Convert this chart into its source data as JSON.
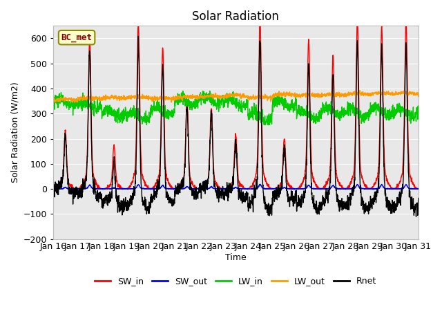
{
  "title": "Solar Radiation",
  "xlabel": "Time",
  "ylabel": "Solar Radiation (W/m2)",
  "ylim": [
    -200,
    650
  ],
  "xlim": [
    0,
    360
  ],
  "yticks": [
    -200,
    -100,
    0,
    100,
    200,
    300,
    400,
    500,
    600
  ],
  "xtick_labels": [
    "Jan 16",
    "Jan 17",
    "Jan 18",
    "Jan 19",
    "Jan 20",
    "Jan 21",
    "Jan 22",
    "Jan 23",
    "Jan 24",
    "Jan 25",
    "Jan 26",
    "Jan 27",
    "Jan 28",
    "Jan 29",
    "Jan 30",
    "Jan 31"
  ],
  "xtick_positions": [
    0,
    24,
    48,
    72,
    96,
    120,
    144,
    168,
    192,
    216,
    240,
    264,
    288,
    312,
    336,
    360
  ],
  "colors": {
    "SW_in": "#ff0000",
    "SW_out": "#0000ff",
    "LW_in": "#00cc00",
    "LW_out": "#ff9900",
    "Rnet": "#000000"
  },
  "annotation_text": "BC_met",
  "annotation_color": "#8B0000",
  "annotation_bg": "#ffffcc",
  "annotation_border": "#8B8B00",
  "bg_color": "#e8e8e8",
  "figure_bg": "#ffffff",
  "grid_color": "#ffffff",
  "linewidths": {
    "SW_in": 1.0,
    "SW_out": 1.0,
    "LW_in": 1.0,
    "LW_out": 1.0,
    "Rnet": 1.0
  }
}
